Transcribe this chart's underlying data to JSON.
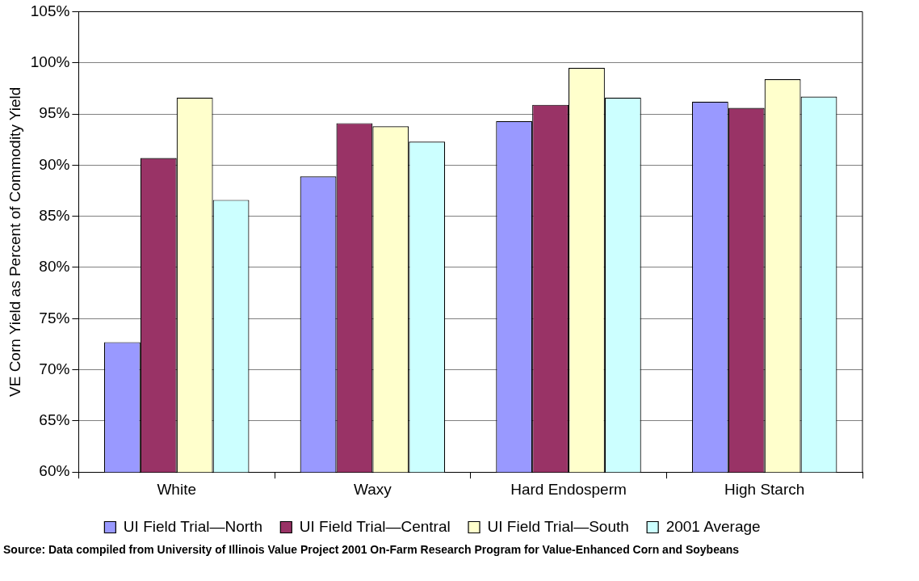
{
  "chart_data": {
    "type": "bar",
    "ylabel": "VE Corn Yield as Percent of Commodity Yield",
    "categories": [
      "White",
      "Waxy",
      "Hard Endosperm",
      "High Starch"
    ],
    "series": [
      {
        "name": "UI Field Trial—North",
        "color": "#9999ff",
        "values": [
          72.7,
          88.9,
          94.3,
          96.2
        ]
      },
      {
        "name": "UI Field Trial—Central",
        "color": "#993366",
        "values": [
          90.7,
          94.1,
          95.9,
          95.6
        ]
      },
      {
        "name": "UI Field Trial—South",
        "color": "#ffffcc",
        "values": [
          96.6,
          93.8,
          99.5,
          98.4
        ]
      },
      {
        "name": "2001 Average",
        "color": "#ccffff",
        "values": [
          86.6,
          92.3,
          96.6,
          96.7
        ]
      }
    ],
    "ylim": [
      60,
      105
    ],
    "yticks": [
      {
        "value": 60,
        "label": "60%"
      },
      {
        "value": 65,
        "label": "65%"
      },
      {
        "value": 70,
        "label": "70%"
      },
      {
        "value": 75,
        "label": "75%"
      },
      {
        "value": 80,
        "label": "80%"
      },
      {
        "value": 85,
        "label": "85%"
      },
      {
        "value": 90,
        "label": "90%"
      },
      {
        "value": 95,
        "label": "95%"
      },
      {
        "value": 100,
        "label": "100%"
      },
      {
        "value": 105,
        "label": "105%"
      }
    ],
    "grid": "y",
    "legend": "bottom",
    "annotations": [
      "Source:  Data compiled from University of Illinois Value Project 2001 On-Farm Research Program for Value-Enhanced Corn and Soybeans"
    ]
  }
}
